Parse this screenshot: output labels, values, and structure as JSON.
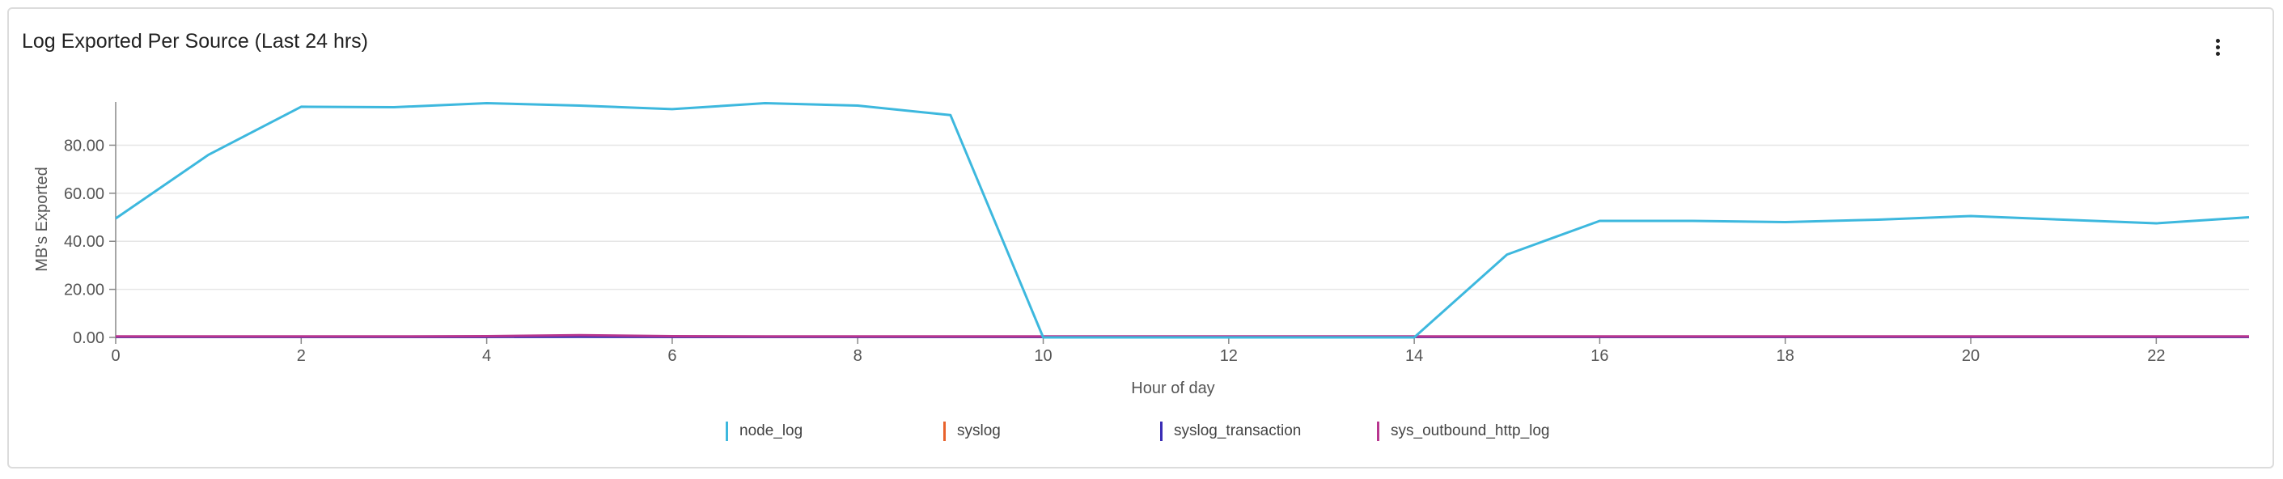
{
  "panel": {
    "title": "Log Exported Per Source (Last 24 hrs)",
    "menu_icon": "more-vertical-icon"
  },
  "chart_data": {
    "type": "line",
    "title": "Log Exported Per Source (Last 24 hrs)",
    "xlabel": "Hour of day",
    "ylabel": "MB's Exported",
    "x": [
      0,
      1,
      2,
      3,
      4,
      5,
      6,
      7,
      8,
      9,
      10,
      11,
      12,
      13,
      14,
      15,
      16,
      17,
      18,
      19,
      20,
      21,
      22,
      23
    ],
    "xlim": [
      0,
      23
    ],
    "ylim": [
      0,
      98
    ],
    "x_ticks": [
      "0",
      "2",
      "4",
      "6",
      "8",
      "10",
      "12",
      "14",
      "16",
      "18",
      "20",
      "22"
    ],
    "y_ticks": [
      "0.00",
      "20.00",
      "40.00",
      "60.00",
      "80.00"
    ],
    "grid": true,
    "legend_position": "bottom",
    "series": [
      {
        "name": "node_log",
        "color": "#3db8de",
        "values": [
          49.5,
          76,
          96,
          95.8,
          97.5,
          96.5,
          95,
          97.5,
          96.5,
          92.5,
          0,
          0,
          0,
          0,
          0,
          34.5,
          48.5,
          48.5,
          48,
          49,
          50.5,
          49,
          47.5,
          50
        ]
      },
      {
        "name": "syslog",
        "color": "#e8622c",
        "values": [
          0.3,
          0.3,
          0.3,
          0.3,
          0.3,
          0.6,
          0.3,
          0.3,
          0.3,
          0.3,
          0.3,
          0.3,
          0.3,
          0.3,
          0.3,
          0.3,
          0.3,
          0.3,
          0.3,
          0.3,
          0.3,
          0.3,
          0.3,
          0.3
        ]
      },
      {
        "name": "syslog_transaction",
        "color": "#3a2db5",
        "values": [
          0.2,
          0.2,
          0.2,
          0.2,
          0.2,
          0.3,
          0.2,
          0.2,
          0.2,
          0.2,
          0.2,
          0.2,
          0.2,
          0.2,
          0.2,
          0.2,
          0.2,
          0.2,
          0.2,
          0.2,
          0.2,
          0.2,
          0.2,
          0.2
        ]
      },
      {
        "name": "sys_outbound_http_log",
        "color": "#b8368f",
        "values": [
          0.4,
          0.4,
          0.4,
          0.4,
          0.5,
          0.9,
          0.5,
          0.4,
          0.4,
          0.4,
          0.4,
          0.4,
          0.4,
          0.4,
          0.4,
          0.4,
          0.4,
          0.4,
          0.4,
          0.4,
          0.4,
          0.4,
          0.4,
          0.4
        ]
      }
    ]
  }
}
